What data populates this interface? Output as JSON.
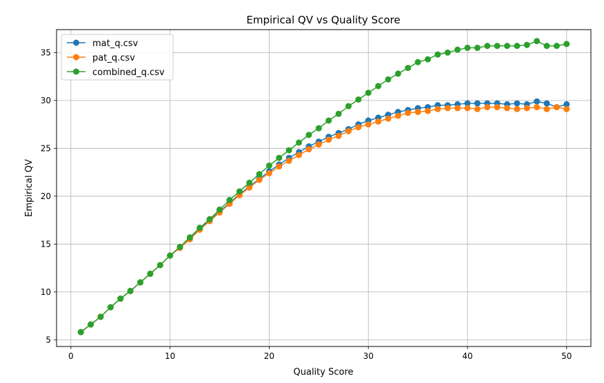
{
  "chart_data": {
    "type": "line",
    "title": "Empirical QV vs Quality Score",
    "xlabel": "Quality Score",
    "ylabel": "Empirical QV",
    "xlim": [
      -1.45,
      52.45
    ],
    "ylim": [
      4.3,
      37.4
    ],
    "xticks": [
      0,
      10,
      20,
      30,
      40,
      50
    ],
    "yticks": [
      5,
      10,
      15,
      20,
      25,
      30,
      35
    ],
    "grid": true,
    "legend_position": "top-left",
    "x": [
      1,
      2,
      3,
      4,
      5,
      6,
      7,
      8,
      9,
      10,
      11,
      12,
      13,
      14,
      15,
      16,
      17,
      18,
      19,
      20,
      21,
      22,
      23,
      24,
      25,
      26,
      27,
      28,
      29,
      30,
      31,
      32,
      33,
      34,
      35,
      36,
      37,
      38,
      39,
      40,
      41,
      42,
      43,
      44,
      45,
      46,
      47,
      48,
      49,
      50
    ],
    "series": [
      {
        "name": "mat_q.csv",
        "color": "#1f77b4",
        "values": [
          5.8,
          6.6,
          7.4,
          8.4,
          9.3,
          10.1,
          11.0,
          11.9,
          12.8,
          13.8,
          14.7,
          15.6,
          16.6,
          17.5,
          18.4,
          19.3,
          20.2,
          21.0,
          21.8,
          22.6,
          23.3,
          24.0,
          24.6,
          25.2,
          25.7,
          26.2,
          26.6,
          27.0,
          27.5,
          27.9,
          28.2,
          28.5,
          28.8,
          29.0,
          29.2,
          29.3,
          29.5,
          29.5,
          29.6,
          29.7,
          29.7,
          29.7,
          29.7,
          29.6,
          29.7,
          29.6,
          29.9,
          29.7,
          29.3,
          29.6
        ]
      },
      {
        "name": "pat_q.csv",
        "color": "#ff7f0e",
        "values": [
          5.8,
          6.6,
          7.4,
          8.4,
          9.3,
          10.1,
          11.0,
          11.9,
          12.8,
          13.8,
          14.6,
          15.5,
          16.5,
          17.4,
          18.3,
          19.2,
          20.1,
          20.9,
          21.7,
          22.4,
          23.1,
          23.7,
          24.3,
          24.9,
          25.4,
          25.9,
          26.3,
          26.8,
          27.2,
          27.5,
          27.8,
          28.1,
          28.4,
          28.7,
          28.8,
          28.9,
          29.1,
          29.2,
          29.2,
          29.2,
          29.1,
          29.3,
          29.3,
          29.2,
          29.1,
          29.2,
          29.3,
          29.1,
          29.3,
          29.1
        ]
      },
      {
        "name": "combined_q.csv",
        "color": "#2ca02c",
        "values": [
          5.8,
          6.6,
          7.4,
          8.4,
          9.3,
          10.1,
          11.0,
          11.9,
          12.8,
          13.8,
          14.7,
          15.7,
          16.7,
          17.6,
          18.6,
          19.6,
          20.5,
          21.4,
          22.3,
          23.2,
          24.0,
          24.8,
          25.6,
          26.4,
          27.1,
          27.9,
          28.6,
          29.4,
          30.1,
          30.8,
          31.5,
          32.2,
          32.8,
          33.4,
          34.0,
          34.3,
          34.8,
          35.0,
          35.3,
          35.5,
          35.5,
          35.7,
          35.7,
          35.7,
          35.7,
          35.8,
          36.2,
          35.7,
          35.7,
          35.9
        ]
      }
    ]
  }
}
